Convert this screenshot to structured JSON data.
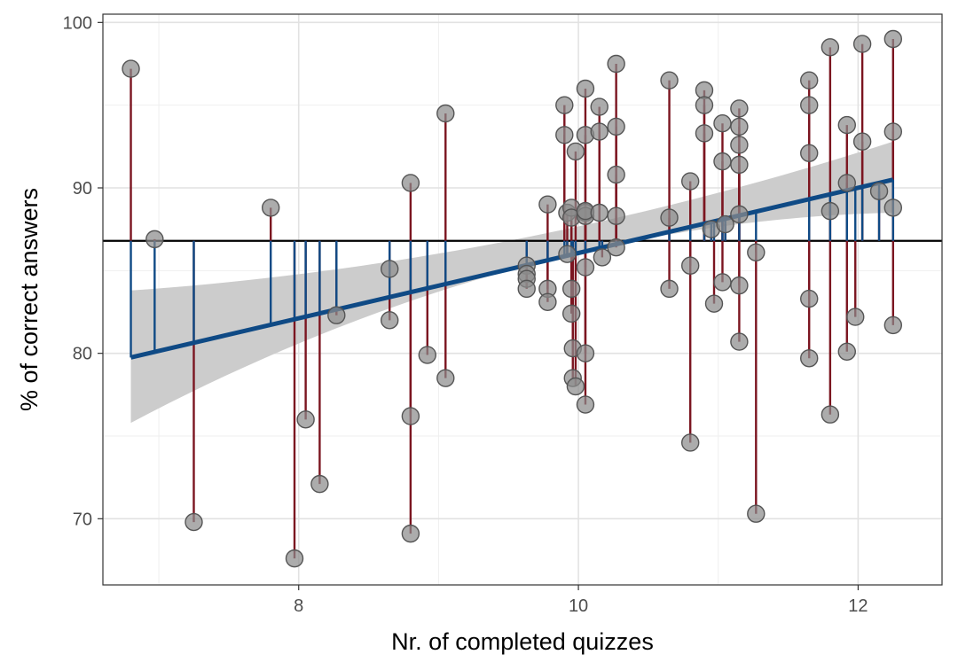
{
  "chart_data": {
    "type": "scatter",
    "title": "",
    "xlabel": "Nr. of completed quizzes",
    "ylabel": "% of correct answers",
    "xlim": [
      6.6,
      12.6
    ],
    "ylim": [
      66.0,
      100.5
    ],
    "x_ticks": [
      8,
      10,
      12
    ],
    "y_ticks": [
      70,
      80,
      90,
      100
    ],
    "grid": true,
    "mean_line": 86.8,
    "regression": {
      "x": [
        6.8,
        12.25
      ],
      "y": [
        79.75,
        90.5
      ],
      "ci_band": {
        "x": [
          6.8,
          9.5,
          12.25
        ],
        "upper": [
          83.8,
          86.8,
          92.8
        ],
        "lower": [
          75.8,
          85.0,
          88.5
        ]
      }
    },
    "points": {
      "x": [
        6.8,
        6.97,
        7.25,
        7.8,
        7.97,
        8.05,
        8.15,
        8.27,
        8.65,
        8.65,
        8.8,
        8.8,
        8.8,
        8.92,
        9.05,
        9.05,
        9.63,
        9.63,
        9.63,
        9.63,
        9.78,
        9.78,
        9.78,
        9.9,
        9.9,
        9.92,
        9.92,
        9.95,
        9.95,
        9.95,
        9.95,
        9.96,
        9.96,
        9.98,
        9.98,
        10.05,
        10.05,
        10.05,
        10.05,
        10.05,
        10.05,
        10.05,
        10.05,
        10.15,
        10.15,
        10.15,
        10.17,
        10.27,
        10.27,
        10.27,
        10.27,
        10.27,
        10.65,
        10.65,
        10.65,
        10.8,
        10.8,
        10.8,
        10.9,
        10.9,
        10.9,
        10.95,
        10.97,
        11.03,
        11.03,
        11.03,
        11.05,
        11.15,
        11.15,
        11.15,
        11.15,
        11.15,
        11.15,
        11.15,
        11.27,
        11.27,
        11.65,
        11.65,
        11.65,
        11.65,
        11.65,
        11.8,
        11.8,
        11.8,
        11.92,
        11.92,
        11.92,
        11.98,
        12.03,
        12.03,
        12.15,
        12.25,
        12.25,
        12.25,
        12.25
      ]
    },
    "residual_colors": {
      "above": "#7b1520",
      "below": "#0f4a85"
    },
    "colors": {
      "point_fill": "#8c8c8c",
      "point_stroke": "#555555",
      "regression": "#0f4a85",
      "ci_band": "#cccccc",
      "mean_line": "#000000",
      "grid_major": "#e2e2e2",
      "grid_minor": "#efefef"
    }
  }
}
